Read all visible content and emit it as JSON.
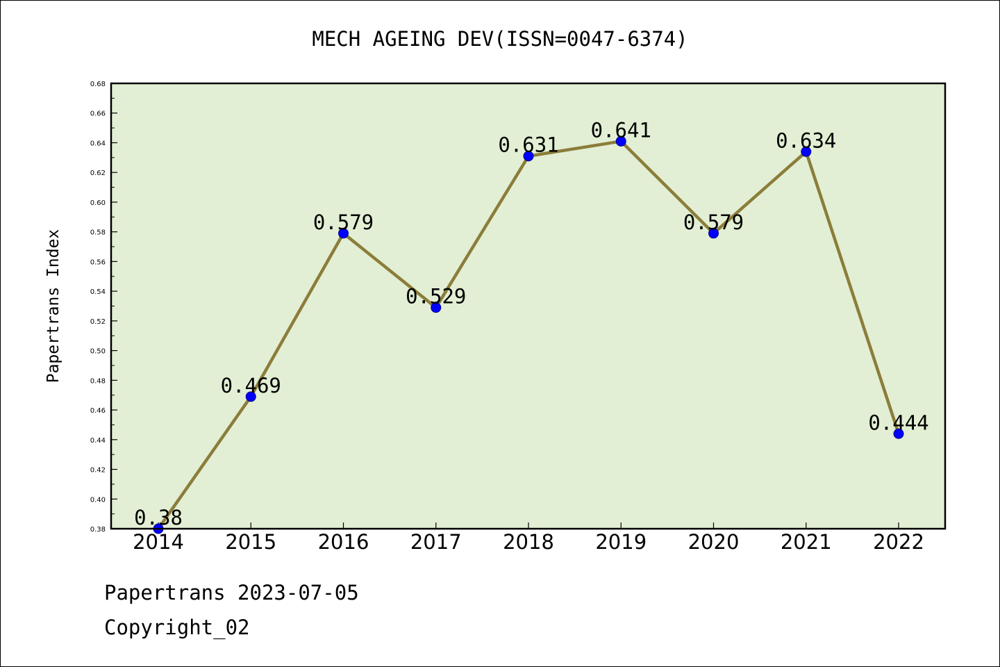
{
  "chart_data": {
    "type": "line",
    "title": "MECH AGEING DEV(ISSN=0047-6374)",
    "xlabel": "",
    "ylabel": "Papertrans Index",
    "categories": [
      "2014",
      "2015",
      "2016",
      "2017",
      "2018",
      "2019",
      "2020",
      "2021",
      "2022"
    ],
    "series": [
      {
        "values": [
          0.38,
          0.469,
          0.579,
          0.529,
          0.631,
          0.641,
          0.579,
          0.634,
          0.444
        ],
        "data_labels": [
          "0.38",
          "0.469",
          "0.579",
          "0.529",
          "0.631",
          "0.641",
          "0.579",
          "0.634",
          "0.444"
        ]
      }
    ],
    "ylim": [
      0.38,
      0.68
    ],
    "yticks": [
      "0.38",
      "0.40",
      "0.42",
      "0.44",
      "0.46",
      "0.48",
      "0.50",
      "0.52",
      "0.54",
      "0.56",
      "0.58",
      "0.60",
      "0.62",
      "0.64",
      "0.66",
      "0.68"
    ],
    "grid": false,
    "legend": "none",
    "colors": {
      "plot_background": "#e2efd4",
      "line": "#8b7d3a",
      "marker": "#0000ff",
      "marker_edge": "#00008b"
    }
  },
  "footer": {
    "date_line": "Papertrans 2023-07-05",
    "copyright_line": "Copyright_02"
  }
}
